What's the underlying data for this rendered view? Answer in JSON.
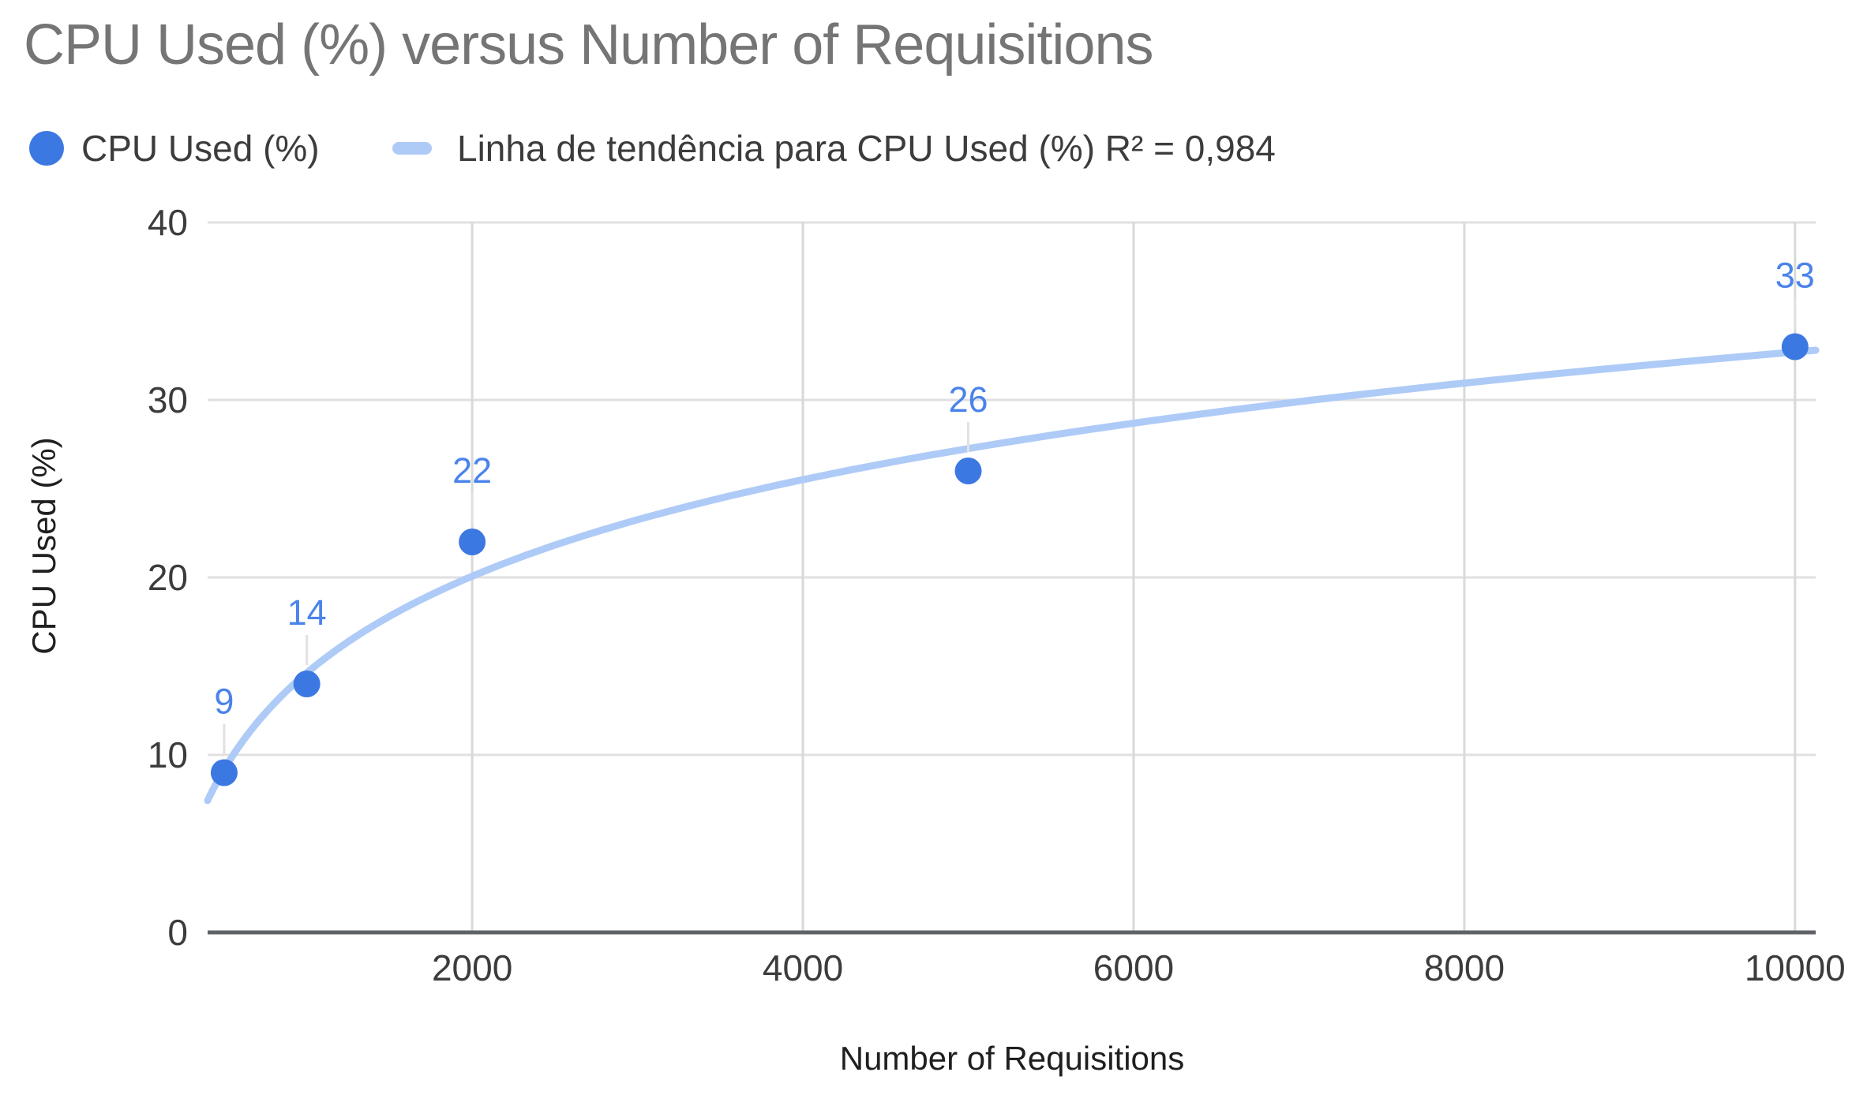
{
  "title": "CPU Used (%) versus Number of Requisitions",
  "legend": {
    "series_label": "CPU Used (%)",
    "trendline_label": "Linha de tendência para CPU Used (%) R² = 0,984"
  },
  "colors": {
    "series": "#3c78e2",
    "data_label": "#4a83ea",
    "trendline": "#aecbf7",
    "grid": "#e0e0e0",
    "grid_vertical": "#d9d9d9",
    "axis_line": "#5f6368",
    "leader": "#e2e2e2",
    "tick_label": "#3c3c3c",
    "title": "#757575",
    "axis_title": "#1f1f1f"
  },
  "chart_data": {
    "type": "scatter",
    "title": "CPU Used (%) versus Number of Requisitions",
    "xlabel": "Number of Requisitions",
    "ylabel": "CPU Used (%)",
    "series": [
      {
        "name": "CPU Used (%)",
        "x": [
          500,
          1000,
          2000,
          5000,
          10000
        ],
        "y": [
          9,
          14,
          22,
          26,
          33
        ],
        "point_labels": [
          "9",
          "14",
          "22",
          "26",
          "33"
        ]
      }
    ],
    "trendline": {
      "for_series": "CPU Used (%)",
      "label": "Linha de tendência para CPU Used (%)",
      "type": "logarithmic",
      "r_squared_text": "R² = 0,984",
      "r_squared": 0.984,
      "fit": {
        "a": 7.85,
        "b": -39.6,
        "form": "y = a*ln(x) + b"
      }
    },
    "x_ticks": [
      2000,
      4000,
      6000,
      8000,
      10000
    ],
    "y_ticks": [
      0,
      10,
      20,
      30,
      40
    ],
    "xlim": [
      400,
      10125
    ],
    "ylim": [
      0,
      40
    ],
    "grid": true,
    "legend_position": "top"
  }
}
